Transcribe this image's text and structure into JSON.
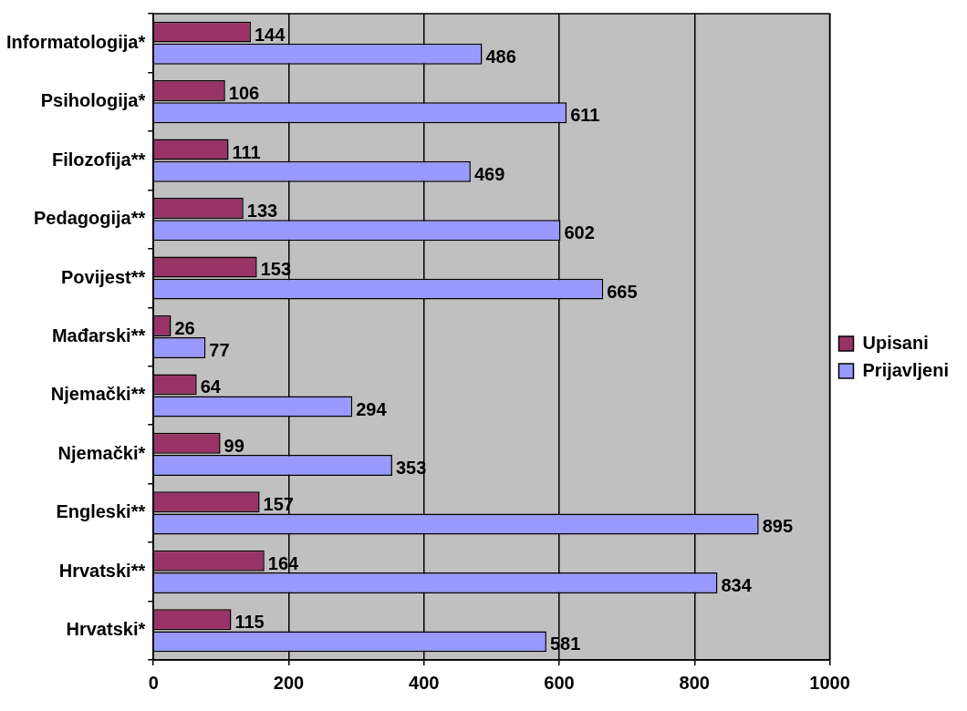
{
  "chart_data": {
    "type": "bar",
    "orientation": "horizontal",
    "categories": [
      "Informatologija*",
      "Psihologija*",
      "Filozofija**",
      "Pedagogija**",
      "Povijest**",
      "Mađarski**",
      "Njemački**",
      "Njemački*",
      "Engleski**",
      "Hrvatski**",
      "Hrvatski*"
    ],
    "series": [
      {
        "name": "Upisani",
        "color": "#993366",
        "values": [
          144,
          106,
          111,
          133,
          153,
          26,
          64,
          99,
          157,
          164,
          115
        ]
      },
      {
        "name": "Prijavljeni",
        "color": "#9999ff",
        "values": [
          486,
          611,
          469,
          602,
          665,
          77,
          294,
          353,
          895,
          834,
          581
        ]
      }
    ],
    "xlim": [
      0,
      1000
    ],
    "xticks": [
      0,
      200,
      400,
      600,
      800,
      1000
    ],
    "grid": "x",
    "legend": "right",
    "data_labels": true
  }
}
